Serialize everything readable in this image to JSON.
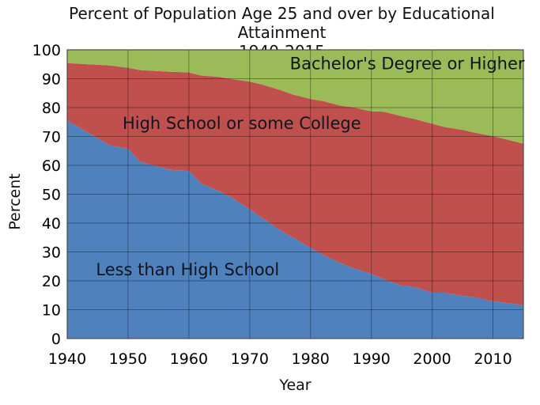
{
  "figure": {
    "title_line1": "Percent of Population Age 25 and over by Educational Attainment",
    "title_line2": "1940-2015",
    "xlabel": "Year",
    "ylabel": "Percent"
  },
  "chart_data": {
    "type": "area",
    "stacked": true,
    "title": "Percent of Population Age 25 and over by Educational Attainment",
    "subtitle": "1940-2015",
    "xlabel": "Year",
    "ylabel": "Percent",
    "xlim": [
      1940,
      2015
    ],
    "ylim": [
      0,
      100
    ],
    "x_ticks": [
      1940,
      1950,
      1960,
      1970,
      1980,
      1990,
      2000,
      2010
    ],
    "y_ticks": [
      0,
      10,
      20,
      30,
      40,
      50,
      60,
      70,
      80,
      90,
      100
    ],
    "grid": true,
    "grid_color": "rgba(0,0,0,0.35)",
    "border_color": "#4d4d4d",
    "x": [
      1940,
      1947,
      1950,
      1952,
      1957,
      1960,
      1962,
      1965,
      1967,
      1970,
      1972,
      1975,
      1977,
      1980,
      1982,
      1985,
      1987,
      1990,
      1992,
      1995,
      1997,
      2000,
      2002,
      2005,
      2007,
      2010,
      2012,
      2015
    ],
    "series": [
      {
        "name": "Less than High School",
        "slug": "less-than-high-school",
        "color": "#4f81bd",
        "values": [
          75.5,
          66.9,
          65.7,
          61.2,
          58.4,
          58.0,
          53.7,
          51.0,
          48.9,
          44.8,
          41.8,
          37.5,
          35.1,
          31.4,
          29.0,
          26.1,
          24.4,
          22.4,
          20.6,
          18.3,
          17.9,
          15.9,
          15.9,
          14.8,
          14.3,
          12.9,
          12.4,
          11.6
        ]
      },
      {
        "name": "High School or some College",
        "slug": "high-school-or-some-college",
        "color": "#c0504d",
        "values": [
          19.9,
          27.7,
          28.1,
          31.8,
          34.0,
          34.2,
          37.4,
          39.6,
          41.0,
          44.2,
          46.2,
          48.6,
          49.5,
          51.6,
          53.3,
          54.5,
          55.7,
          56.3,
          58.0,
          58.7,
          58.2,
          58.5,
          57.4,
          57.5,
          57.0,
          57.2,
          56.7,
          55.9
        ]
      },
      {
        "name": "Bachelor's Degree or Higher",
        "slug": "bachelors-degree-or-higher",
        "color": "#9bbb59",
        "values": [
          4.6,
          5.4,
          6.2,
          7.0,
          7.6,
          7.8,
          8.9,
          9.4,
          10.1,
          11.0,
          12.0,
          13.9,
          15.4,
          17.0,
          17.7,
          19.4,
          19.9,
          21.3,
          21.4,
          23.0,
          23.9,
          25.6,
          26.7,
          27.7,
          28.7,
          29.9,
          30.9,
          32.5
        ]
      }
    ],
    "annotations": [
      {
        "text": "Less than High School",
        "slug": "less-than-high-school",
        "year": 1959.8,
        "pct": 23.8
      },
      {
        "text": "High School or some College",
        "slug": "high-school-or-some-college",
        "year": 1968.7,
        "pct": 74.5
      },
      {
        "text": "Bachelor's Degree or Higher",
        "slug": "bachelors-degree-or-higher",
        "year": 1995.9,
        "pct": 95.2
      }
    ],
    "legend_position": "in-plot-labels"
  }
}
